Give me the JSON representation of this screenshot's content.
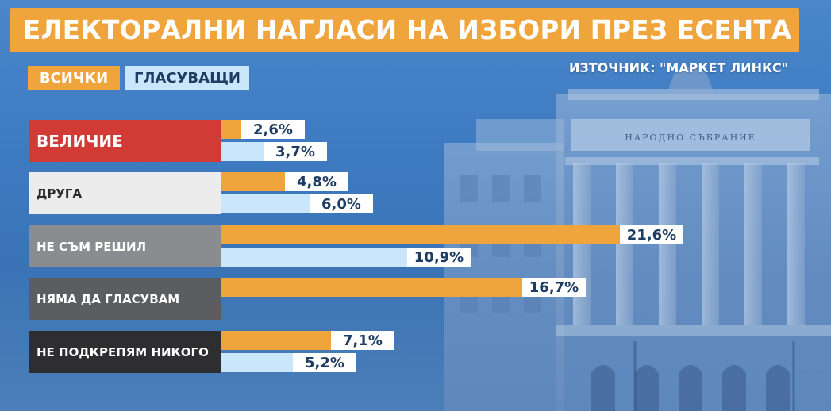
{
  "title": "ЕЛЕКТОРАЛНИ НАГЛАСИ НА ИЗБОРИ ПРЕЗ ЕСЕНТА",
  "source": "ИЗТОЧНИК: \"МАРКЕТ ЛИНКС\"",
  "building_sign": "НАРОДНО СЪБРАНИЕ",
  "colors": {
    "title_bg": "#f0a43c",
    "all_series": "#f0a43c",
    "voters_series": "#c9e6fb",
    "label_text": "#1e3d63",
    "velichie": "#d23a36",
    "druga": "#ececec",
    "ne_sam_reshil": "#8a8c90",
    "nyama_da_glasuvam": "#5c5d61",
    "ne_podkrepyam": "#2e2e31"
  },
  "chart_data": {
    "type": "bar",
    "orientation": "horizontal",
    "categories": [
      "ВЕЛИЧИЕ",
      "ДРУГА",
      "НЕ СЪМ РЕШИЛ",
      "НЯМА ДА ГЛАСУВАМ",
      "НЕ ПОДКРЕПЯМ НИКОГО"
    ],
    "series": [
      {
        "name": "ВСИЧКИ",
        "values": [
          2.6,
          4.8,
          21.6,
          16.7,
          7.1
        ],
        "labels": [
          "2,6%",
          "4,8%",
          "21,6%",
          "16,7%",
          "7,1%"
        ]
      },
      {
        "name": "ГЛАСУВАЩИ",
        "values": [
          3.7,
          6.0,
          10.9,
          null,
          5.2
        ],
        "labels": [
          "3,7%",
          "6,0%",
          "10,9%",
          "",
          "5,2%"
        ]
      }
    ],
    "unit": "%",
    "xlim": [
      0,
      21.6
    ],
    "legend_position": "top-left",
    "grid": false,
    "title": "ЕЛЕКТОРАЛНИ НАГЛАСИ НА ИЗБОРИ ПРЕЗ ЕСЕНТА",
    "xlabel": "",
    "ylabel": ""
  }
}
